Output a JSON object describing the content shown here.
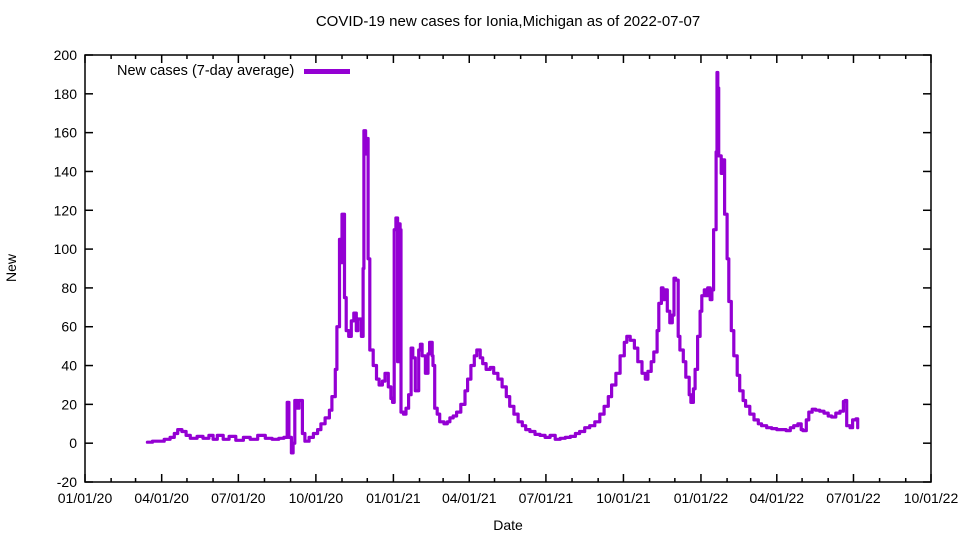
{
  "title": "COVID-19 new cases for Ionia,Michigan as of 2022-07-07",
  "legend": {
    "label": "New cases (7-day average)"
  },
  "x_axis": {
    "label": "Date"
  },
  "y_axis": {
    "label": "New"
  },
  "colors": {
    "line": "#9400d3",
    "text": "#000000",
    "border": "#000000",
    "background": "#ffffff"
  },
  "chart_data": {
    "type": "line",
    "title": "COVID-19 new cases for Ionia,Michigan as of 2022-07-07",
    "xlabel": "Date",
    "ylabel": "New",
    "grid": false,
    "legend_position": "top-left-inside",
    "line_color": "#9400d3",
    "ylim": [
      -20,
      200
    ],
    "y_ticks": [
      -20,
      0,
      20,
      40,
      60,
      80,
      100,
      120,
      140,
      160,
      180,
      200
    ],
    "x_range": [
      "2020-01-01",
      "2022-10-01"
    ],
    "x_ticks": [
      {
        "date": "2020-01-01",
        "label": "01/01/20"
      },
      {
        "date": "2020-04-01",
        "label": "04/01/20"
      },
      {
        "date": "2020-07-01",
        "label": "07/01/20"
      },
      {
        "date": "2020-10-01",
        "label": "10/01/20"
      },
      {
        "date": "2021-01-01",
        "label": "01/01/21"
      },
      {
        "date": "2021-04-01",
        "label": "04/01/21"
      },
      {
        "date": "2021-07-01",
        "label": "07/01/21"
      },
      {
        "date": "2021-10-01",
        "label": "10/01/21"
      },
      {
        "date": "2022-01-01",
        "label": "01/01/22"
      },
      {
        "date": "2022-04-01",
        "label": "04/01/22"
      },
      {
        "date": "2022-07-01",
        "label": "07/01/22"
      },
      {
        "date": "2022-10-01",
        "label": "10/01/22"
      }
    ],
    "x_minor_tick_interval": "month",
    "series": [
      {
        "name": "New cases (7-day average)",
        "color": "#9400d3",
        "points": [
          [
            "2020-03-15",
            0.5
          ],
          [
            "2020-03-21",
            1
          ],
          [
            "2020-03-28",
            1
          ],
          [
            "2020-04-04",
            2
          ],
          [
            "2020-04-11",
            3
          ],
          [
            "2020-04-16",
            5
          ],
          [
            "2020-04-20",
            7
          ],
          [
            "2020-04-25",
            6
          ],
          [
            "2020-04-30",
            4
          ],
          [
            "2020-05-05",
            2.5
          ],
          [
            "2020-05-13",
            3.5
          ],
          [
            "2020-05-20",
            2.5
          ],
          [
            "2020-05-27",
            4
          ],
          [
            "2020-06-01",
            2
          ],
          [
            "2020-06-06",
            4
          ],
          [
            "2020-06-13",
            2
          ],
          [
            "2020-06-20",
            3.5
          ],
          [
            "2020-06-28",
            1.5
          ],
          [
            "2020-07-07",
            3
          ],
          [
            "2020-07-15",
            2
          ],
          [
            "2020-07-24",
            4
          ],
          [
            "2020-08-02",
            2.5
          ],
          [
            "2020-08-10",
            2
          ],
          [
            "2020-08-18",
            2.5
          ],
          [
            "2020-08-24",
            3
          ],
          [
            "2020-08-28",
            21
          ],
          [
            "2020-08-30",
            3
          ],
          [
            "2020-09-02",
            -5
          ],
          [
            "2020-09-04",
            0
          ],
          [
            "2020-09-06",
            22
          ],
          [
            "2020-09-09",
            18
          ],
          [
            "2020-09-11",
            22
          ],
          [
            "2020-09-15",
            5
          ],
          [
            "2020-09-18",
            1
          ],
          [
            "2020-09-23",
            3
          ],
          [
            "2020-09-28",
            5
          ],
          [
            "2020-10-03",
            7
          ],
          [
            "2020-10-07",
            10
          ],
          [
            "2020-10-12",
            13
          ],
          [
            "2020-10-17",
            17
          ],
          [
            "2020-10-20",
            24
          ],
          [
            "2020-10-24",
            38
          ],
          [
            "2020-10-26",
            60
          ],
          [
            "2020-10-29",
            105
          ],
          [
            "2020-10-30",
            93
          ],
          [
            "2020-11-01",
            118
          ],
          [
            "2020-11-04",
            75
          ],
          [
            "2020-11-06",
            58
          ],
          [
            "2020-11-09",
            55
          ],
          [
            "2020-11-12",
            63
          ],
          [
            "2020-11-15",
            67
          ],
          [
            "2020-11-18",
            58
          ],
          [
            "2020-11-20",
            64
          ],
          [
            "2020-11-24",
            55
          ],
          [
            "2020-11-26",
            90
          ],
          [
            "2020-11-27",
            161
          ],
          [
            "2020-11-29",
            149
          ],
          [
            "2020-11-30",
            157
          ],
          [
            "2020-12-02",
            95
          ],
          [
            "2020-12-04",
            48
          ],
          [
            "2020-12-08",
            40
          ],
          [
            "2020-12-12",
            33
          ],
          [
            "2020-12-15",
            30
          ],
          [
            "2020-12-19",
            32
          ],
          [
            "2020-12-22",
            36
          ],
          [
            "2020-12-26",
            29
          ],
          [
            "2020-12-29",
            23
          ],
          [
            "2020-12-31",
            21
          ],
          [
            "2021-01-02",
            110
          ],
          [
            "2021-01-04",
            116
          ],
          [
            "2021-01-06",
            42
          ],
          [
            "2021-01-08",
            113
          ],
          [
            "2021-01-09",
            110
          ],
          [
            "2021-01-10",
            16
          ],
          [
            "2021-01-13",
            15
          ],
          [
            "2021-01-16",
            18
          ],
          [
            "2021-01-19",
            25
          ],
          [
            "2021-01-22",
            49
          ],
          [
            "2021-01-24",
            44
          ],
          [
            "2021-01-27",
            27
          ],
          [
            "2021-01-31",
            48
          ],
          [
            "2021-02-02",
            51
          ],
          [
            "2021-02-04",
            45
          ],
          [
            "2021-02-08",
            36
          ],
          [
            "2021-02-11",
            46
          ],
          [
            "2021-02-13",
            52
          ],
          [
            "2021-02-16",
            45
          ],
          [
            "2021-02-17",
            40
          ],
          [
            "2021-02-19",
            18
          ],
          [
            "2021-02-22",
            15
          ],
          [
            "2021-02-25",
            11
          ],
          [
            "2021-03-02",
            10
          ],
          [
            "2021-03-06",
            11
          ],
          [
            "2021-03-09",
            13
          ],
          [
            "2021-03-13",
            14
          ],
          [
            "2021-03-17",
            16
          ],
          [
            "2021-03-22",
            20
          ],
          [
            "2021-03-27",
            27
          ],
          [
            "2021-03-30",
            33
          ],
          [
            "2021-04-03",
            40
          ],
          [
            "2021-04-07",
            45
          ],
          [
            "2021-04-10",
            48
          ],
          [
            "2021-04-14",
            44
          ],
          [
            "2021-04-17",
            41
          ],
          [
            "2021-04-21",
            38
          ],
          [
            "2021-04-26",
            39
          ],
          [
            "2021-04-30",
            36
          ],
          [
            "2021-05-05",
            33
          ],
          [
            "2021-05-10",
            29
          ],
          [
            "2021-05-15",
            24
          ],
          [
            "2021-05-19",
            19
          ],
          [
            "2021-05-24",
            15
          ],
          [
            "2021-05-29",
            11
          ],
          [
            "2021-06-03",
            9
          ],
          [
            "2021-06-07",
            7
          ],
          [
            "2021-06-12",
            6
          ],
          [
            "2021-06-18",
            4.5
          ],
          [
            "2021-06-24",
            4
          ],
          [
            "2021-06-30",
            3
          ],
          [
            "2021-07-06",
            4
          ],
          [
            "2021-07-12",
            2
          ],
          [
            "2021-07-18",
            2.5
          ],
          [
            "2021-07-24",
            3
          ],
          [
            "2021-07-30",
            3.5
          ],
          [
            "2021-08-05",
            5
          ],
          [
            "2021-08-10",
            6
          ],
          [
            "2021-08-16",
            8
          ],
          [
            "2021-08-22",
            9
          ],
          [
            "2021-08-28",
            11
          ],
          [
            "2021-09-03",
            15
          ],
          [
            "2021-09-08",
            19
          ],
          [
            "2021-09-13",
            24
          ],
          [
            "2021-09-17",
            30
          ],
          [
            "2021-09-22",
            36
          ],
          [
            "2021-09-27",
            45
          ],
          [
            "2021-10-02",
            52
          ],
          [
            "2021-10-05",
            55
          ],
          [
            "2021-10-09",
            53
          ],
          [
            "2021-10-14",
            49
          ],
          [
            "2021-10-18",
            42
          ],
          [
            "2021-10-23",
            36
          ],
          [
            "2021-10-27",
            33
          ],
          [
            "2021-10-30",
            37
          ],
          [
            "2021-11-03",
            42
          ],
          [
            "2021-11-06",
            47
          ],
          [
            "2021-11-10",
            58
          ],
          [
            "2021-11-12",
            72
          ],
          [
            "2021-11-15",
            80
          ],
          [
            "2021-11-17",
            74
          ],
          [
            "2021-11-19",
            79
          ],
          [
            "2021-11-22",
            68
          ],
          [
            "2021-11-25",
            62
          ],
          [
            "2021-11-28",
            66
          ],
          [
            "2021-11-30",
            85
          ],
          [
            "2021-12-02",
            84
          ],
          [
            "2021-12-05",
            55
          ],
          [
            "2021-12-07",
            48
          ],
          [
            "2021-12-11",
            42
          ],
          [
            "2021-12-14",
            34
          ],
          [
            "2021-12-18",
            25
          ],
          [
            "2021-12-20",
            21
          ],
          [
            "2021-12-23",
            28
          ],
          [
            "2021-12-25",
            38
          ],
          [
            "2021-12-28",
            55
          ],
          [
            "2021-12-31",
            68
          ],
          [
            "2022-01-02",
            76
          ],
          [
            "2022-01-05",
            79
          ],
          [
            "2022-01-07",
            76
          ],
          [
            "2022-01-09",
            80
          ],
          [
            "2022-01-12",
            74
          ],
          [
            "2022-01-14",
            79
          ],
          [
            "2022-01-16",
            110
          ],
          [
            "2022-01-19",
            150
          ],
          [
            "2022-01-20",
            191
          ],
          [
            "2022-01-21",
            183
          ],
          [
            "2022-01-22",
            148
          ],
          [
            "2022-01-25",
            139
          ],
          [
            "2022-01-27",
            146
          ],
          [
            "2022-01-29",
            118
          ],
          [
            "2022-02-01",
            95
          ],
          [
            "2022-02-03",
            73
          ],
          [
            "2022-02-06",
            58
          ],
          [
            "2022-02-09",
            45
          ],
          [
            "2022-02-13",
            35
          ],
          [
            "2022-02-16",
            27
          ],
          [
            "2022-02-20",
            22
          ],
          [
            "2022-02-23",
            19
          ],
          [
            "2022-02-28",
            15
          ],
          [
            "2022-03-05",
            12
          ],
          [
            "2022-03-10",
            10
          ],
          [
            "2022-03-14",
            9
          ],
          [
            "2022-03-20",
            8
          ],
          [
            "2022-03-26",
            7.5
          ],
          [
            "2022-04-01",
            7
          ],
          [
            "2022-04-07",
            7
          ],
          [
            "2022-04-12",
            6.5
          ],
          [
            "2022-04-17",
            8
          ],
          [
            "2022-04-21",
            9
          ],
          [
            "2022-04-26",
            10
          ],
          [
            "2022-04-30",
            7
          ],
          [
            "2022-05-02",
            6.5
          ],
          [
            "2022-05-06",
            12
          ],
          [
            "2022-05-09",
            16
          ],
          [
            "2022-05-13",
            17.5
          ],
          [
            "2022-05-17",
            17
          ],
          [
            "2022-05-22",
            16.5
          ],
          [
            "2022-05-27",
            15.5
          ],
          [
            "2022-06-01",
            14
          ],
          [
            "2022-06-05",
            13.5
          ],
          [
            "2022-06-10",
            15.5
          ],
          [
            "2022-06-15",
            16.5
          ],
          [
            "2022-06-19",
            21.5
          ],
          [
            "2022-06-21",
            22
          ],
          [
            "2022-06-23",
            9
          ],
          [
            "2022-06-27",
            8
          ],
          [
            "2022-06-30",
            12
          ],
          [
            "2022-07-04",
            12.5
          ],
          [
            "2022-07-06",
            8
          ]
        ]
      }
    ]
  }
}
